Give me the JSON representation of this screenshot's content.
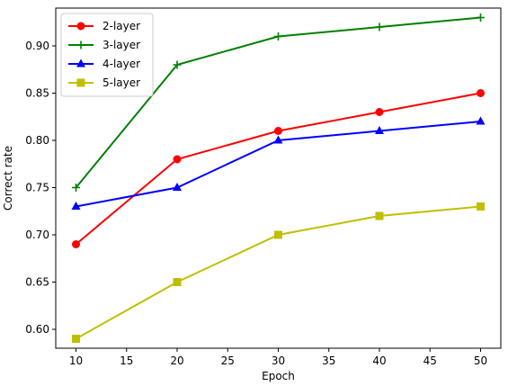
{
  "chart_data": {
    "type": "line",
    "title": "",
    "xlabel": "Epoch",
    "ylabel": "Correct rate",
    "x": [
      10,
      20,
      30,
      40,
      50
    ],
    "xlim": [
      8,
      52
    ],
    "ylim": [
      0.58,
      0.94
    ],
    "xticks": [
      "10",
      "15",
      "20",
      "25",
      "30",
      "35",
      "40",
      "45",
      "50"
    ],
    "yticks": [
      "0.60",
      "0.65",
      "0.70",
      "0.75",
      "0.80",
      "0.85",
      "0.90"
    ],
    "grid": false,
    "legend_position": "top-left",
    "series": [
      {
        "name": "2-layer",
        "color": "#ff0000",
        "marker": "circle",
        "values": [
          0.69,
          0.78,
          0.81,
          0.83,
          0.85
        ]
      },
      {
        "name": "3-layer",
        "color": "#008000",
        "marker": "plus",
        "values": [
          0.75,
          0.88,
          0.91,
          0.92,
          0.93
        ]
      },
      {
        "name": "4-layer",
        "color": "#0000ff",
        "marker": "triangle",
        "values": [
          0.73,
          0.75,
          0.8,
          0.81,
          0.82
        ]
      },
      {
        "name": "5-layer",
        "color": "#bfbf00",
        "marker": "square",
        "values": [
          0.59,
          0.65,
          0.7,
          0.72,
          0.73
        ]
      }
    ]
  }
}
